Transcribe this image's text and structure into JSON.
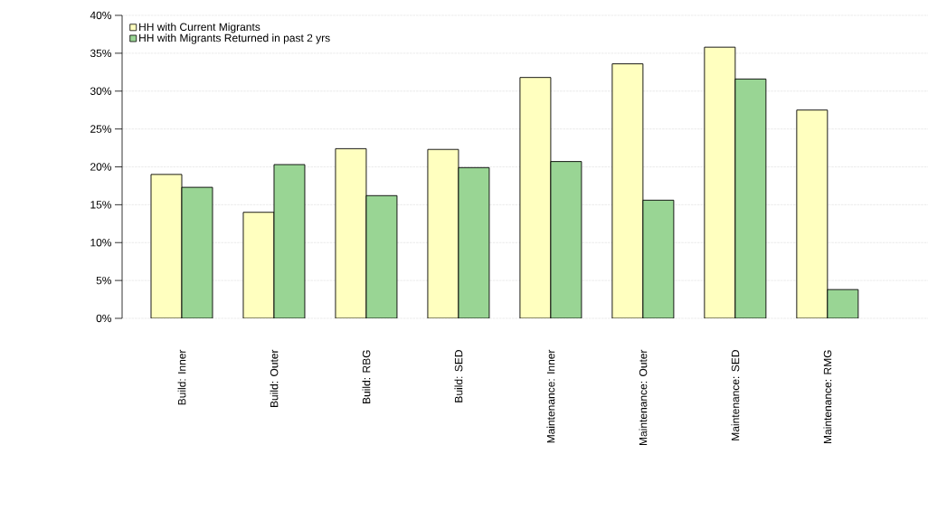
{
  "chart_data": {
    "type": "bar",
    "categories": [
      "Build: Inner",
      "Build: Outer",
      "Build: RBG",
      "Build: SED",
      "Maintenance: Inner",
      "Maintenance: Outer",
      "Maintenance: SED",
      "Maintenance: RMG"
    ],
    "series": [
      {
        "name": "HH with Current Migrants",
        "color": "#ffffbf",
        "values": [
          19.0,
          14.0,
          22.4,
          22.3,
          31.8,
          33.6,
          35.8,
          27.5
        ]
      },
      {
        "name": "HH with Migrants Returned in past 2 yrs",
        "color": "#99d594",
        "values": [
          17.3,
          20.3,
          16.2,
          19.9,
          20.7,
          15.6,
          31.6,
          3.8
        ]
      }
    ],
    "ylim": [
      0,
      40
    ],
    "yticks": [
      {
        "value": 0,
        "label": "0%"
      },
      {
        "value": 5,
        "label": "5%"
      },
      {
        "value": 10,
        "label": "10%"
      },
      {
        "value": 15,
        "label": "15%"
      },
      {
        "value": 20,
        "label": "20%"
      },
      {
        "value": 25,
        "label": "25%"
      },
      {
        "value": 30,
        "label": "30%"
      },
      {
        "value": 35,
        "label": "35%"
      },
      {
        "value": 40,
        "label": "40%"
      }
    ],
    "grid": "y",
    "legend": "top left"
  }
}
